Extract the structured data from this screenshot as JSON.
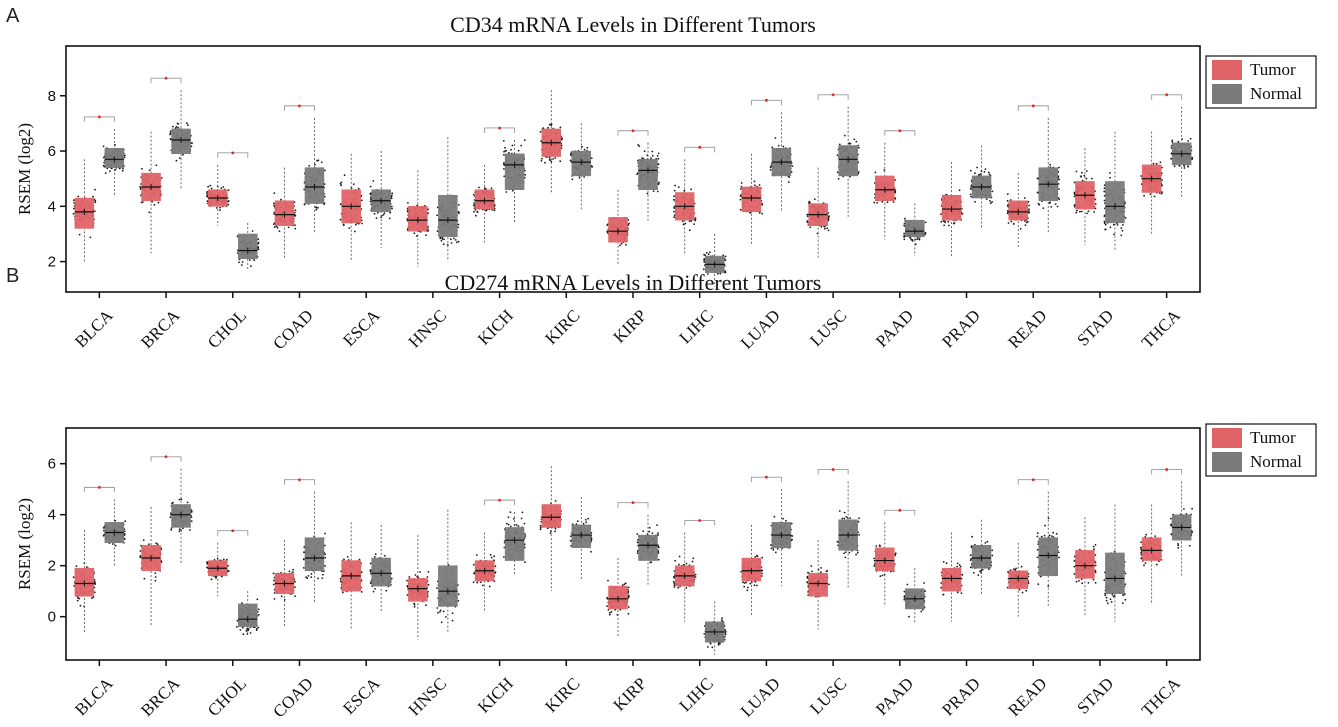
{
  "chart_data": [
    {
      "panel": "A",
      "type": "box",
      "title": "CD34 mRNA Levels in Different Tumors",
      "ylabel": "RSEM (log2)",
      "xlabel": "",
      "ylim": [
        0.9,
        9.8
      ],
      "yticks": [
        2,
        4,
        6,
        8
      ],
      "grid": false,
      "legend_position": "top-right",
      "legend": [
        {
          "name": "Tumor",
          "color": "#e06467"
        },
        {
          "name": "Normal",
          "color": "#7a7a7a"
        }
      ],
      "categories": [
        "BLCA",
        "BRCA",
        "CHOL",
        "COAD",
        "ESCA",
        "HNSC",
        "KICH",
        "KIRC",
        "KIRP",
        "LIHC",
        "LUAD",
        "LUSC",
        "PAAD",
        "PRAD",
        "READ",
        "STAD",
        "THCA"
      ],
      "highlight": [
        "CHOL"
      ],
      "highlight_color": "#e8221c",
      "significant": [
        "BLCA",
        "BRCA",
        "CHOL",
        "COAD",
        "KICH",
        "KIRP",
        "LIHC",
        "LUAD",
        "LUSC",
        "PAAD",
        "READ",
        "THCA"
      ],
      "series": [
        {
          "name": "Tumor",
          "boxes": [
            [
              2.0,
              3.2,
              3.8,
              4.3,
              5.7
            ],
            [
              2.3,
              4.2,
              4.7,
              5.2,
              6.7
            ],
            [
              3.3,
              4.0,
              4.3,
              4.6,
              5.5
            ],
            [
              2.1,
              3.3,
              3.7,
              4.2,
              5.4
            ],
            [
              2.0,
              3.4,
              4.0,
              4.6,
              5.9
            ],
            [
              1.8,
              3.1,
              3.5,
              4.0,
              5.3
            ],
            [
              2.7,
              3.9,
              4.2,
              4.6,
              5.5
            ],
            [
              4.5,
              5.8,
              6.3,
              6.8,
              8.2
            ],
            [
              1.9,
              2.7,
              3.1,
              3.6,
              4.6
            ],
            [
              2.3,
              3.5,
              4.0,
              4.5,
              5.7
            ],
            [
              2.6,
              3.8,
              4.3,
              4.7,
              5.9
            ],
            [
              2.1,
              3.3,
              3.7,
              4.1,
              5.4
            ],
            [
              2.8,
              4.2,
              4.6,
              5.1,
              6.3
            ],
            [
              2.2,
              3.5,
              3.9,
              4.4,
              5.6
            ],
            [
              2.5,
              3.5,
              3.8,
              4.2,
              5.2
            ],
            [
              2.6,
              3.9,
              4.4,
              4.9,
              6.1
            ],
            [
              3.0,
              4.5,
              5.0,
              5.5,
              6.7
            ]
          ]
        },
        {
          "name": "Normal",
          "boxes": [
            [
              4.4,
              5.4,
              5.7,
              6.1,
              6.8
            ],
            [
              4.6,
              5.9,
              6.4,
              6.8,
              8.2
            ],
            [
              1.7,
              2.1,
              2.4,
              3.0,
              3.4
            ],
            [
              3.0,
              4.1,
              4.7,
              5.4,
              7.2
            ],
            [
              2.5,
              3.8,
              4.2,
              4.6,
              6.0
            ],
            [
              2.0,
              2.9,
              3.5,
              4.4,
              6.5
            ],
            [
              3.4,
              4.6,
              5.5,
              5.9,
              6.4
            ],
            [
              3.9,
              5.1,
              5.6,
              6.0,
              7.0
            ],
            [
              3.4,
              4.6,
              5.3,
              5.7,
              6.3
            ],
            [
              1.1,
              1.6,
              1.9,
              2.2,
              3.0
            ],
            [
              3.8,
              5.1,
              5.6,
              6.1,
              7.4
            ],
            [
              3.6,
              5.1,
              5.7,
              6.2,
              7.6
            ],
            [
              2.2,
              2.9,
              3.1,
              3.5,
              4.1
            ],
            [
              3.2,
              4.3,
              4.7,
              5.1,
              6.2
            ],
            [
              3.0,
              4.2,
              4.8,
              5.4,
              7.2
            ],
            [
              2.4,
              3.4,
              4.0,
              4.9,
              6.7
            ],
            [
              4.3,
              5.5,
              5.9,
              6.3,
              7.6
            ]
          ]
        }
      ]
    },
    {
      "panel": "B",
      "type": "box",
      "title": "CD274 mRNA Levels in Different Tumors",
      "ylabel": "RSEM (log2)",
      "xlabel": "",
      "ylim": [
        -1.7,
        7.4
      ],
      "yticks": [
        0,
        2,
        4,
        6
      ],
      "grid": false,
      "legend_position": "top-right",
      "legend": [
        {
          "name": "Tumor",
          "color": "#e06467"
        },
        {
          "name": "Normal",
          "color": "#7a7a7a"
        }
      ],
      "categories": [
        "BLCA",
        "BRCA",
        "CHOL",
        "COAD",
        "ESCA",
        "HNSC",
        "KICH",
        "KIRC",
        "KIRP",
        "LIHC",
        "LUAD",
        "LUSC",
        "PAAD",
        "PRAD",
        "READ",
        "STAD",
        "THCA"
      ],
      "highlight": [
        "CHOL"
      ],
      "highlight_color": "#e8221c",
      "significant": [
        "BLCA",
        "BRCA",
        "CHOL",
        "COAD",
        "KICH",
        "KIRP",
        "LIHC",
        "LUAD",
        "LUSC",
        "PAAD",
        "READ",
        "THCA"
      ],
      "series": [
        {
          "name": "Tumor",
          "boxes": [
            [
              -0.6,
              0.8,
              1.3,
              1.9,
              3.4
            ],
            [
              -0.4,
              1.8,
              2.3,
              2.8,
              4.3
            ],
            [
              0.8,
              1.6,
              1.9,
              2.2,
              2.9
            ],
            [
              -0.4,
              0.9,
              1.3,
              1.7,
              3.0
            ],
            [
              -0.5,
              1.0,
              1.6,
              2.2,
              3.7
            ],
            [
              -0.9,
              0.6,
              1.1,
              1.5,
              3.2
            ],
            [
              0.2,
              1.4,
              1.8,
              2.2,
              3.3
            ],
            [
              1.0,
              3.5,
              3.9,
              4.4,
              5.9
            ],
            [
              -0.8,
              0.3,
              0.7,
              1.2,
              2.3
            ],
            [
              -0.2,
              1.2,
              1.6,
              2.0,
              3.3
            ],
            [
              0.0,
              1.4,
              1.8,
              2.3,
              3.6
            ],
            [
              -0.5,
              0.8,
              1.3,
              1.7,
              3.0
            ],
            [
              0.4,
              1.8,
              2.2,
              2.7,
              3.7
            ],
            [
              -0.2,
              1.0,
              1.5,
              1.9,
              3.3
            ],
            [
              0.0,
              1.1,
              1.5,
              1.8,
              2.9
            ],
            [
              0.0,
              1.5,
              2.0,
              2.6,
              3.9
            ],
            [
              0.5,
              2.2,
              2.6,
              3.1,
              4.4
            ]
          ]
        },
        {
          "name": "Normal",
          "boxes": [
            [
              2.0,
              2.9,
              3.3,
              3.7,
              4.6
            ],
            [
              2.1,
              3.5,
              4.0,
              4.4,
              5.8
            ],
            [
              -0.7,
              -0.4,
              -0.1,
              0.5,
              1.0
            ],
            [
              0.5,
              1.8,
              2.3,
              3.1,
              4.9
            ],
            [
              0.2,
              1.2,
              1.7,
              2.3,
              3.6
            ],
            [
              -0.6,
              0.4,
              1.0,
              2.0,
              4.2
            ],
            [
              1.6,
              2.2,
              3.0,
              3.5,
              4.1
            ],
            [
              1.4,
              2.7,
              3.2,
              3.6,
              4.7
            ],
            [
              1.2,
              2.2,
              2.8,
              3.2,
              4.0
            ],
            [
              -1.5,
              -1.0,
              -0.6,
              -0.2,
              0.6
            ],
            [
              1.2,
              2.7,
              3.2,
              3.7,
              5.0
            ],
            [
              1.1,
              2.6,
              3.2,
              3.8,
              5.3
            ],
            [
              -0.3,
              0.3,
              0.7,
              1.1,
              1.9
            ],
            [
              0.9,
              1.9,
              2.3,
              2.8,
              3.8
            ],
            [
              0.4,
              1.6,
              2.4,
              3.1,
              4.9
            ],
            [
              -0.2,
              0.9,
              1.5,
              2.5,
              4.4
            ],
            [
              1.6,
              3.0,
              3.5,
              4.0,
              5.3
            ]
          ]
        }
      ]
    }
  ]
}
